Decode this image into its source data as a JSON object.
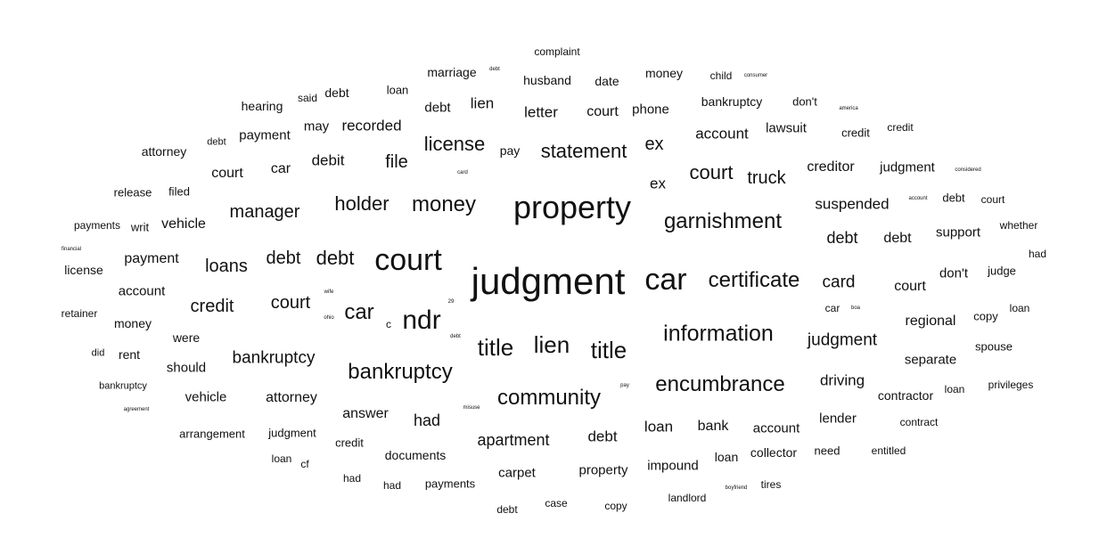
{
  "cloud": {
    "text_color": "#111111",
    "words": [
      {
        "text": "complaint",
        "weight": 12
      },
      {
        "text": "marriage",
        "weight": 14
      },
      {
        "text": "debt",
        "weight": 6
      },
      {
        "text": "husband",
        "weight": 14
      },
      {
        "text": "date",
        "weight": 14
      },
      {
        "text": "money",
        "weight": 14
      },
      {
        "text": "child",
        "weight": 12
      },
      {
        "text": "consumer",
        "weight": 6
      },
      {
        "text": "said",
        "weight": 12
      },
      {
        "text": "debt",
        "weight": 14
      },
      {
        "text": "loan",
        "weight": 13
      },
      {
        "text": "hearing",
        "weight": 14
      },
      {
        "text": "debt",
        "weight": 15
      },
      {
        "text": "lien",
        "weight": 17
      },
      {
        "text": "letter",
        "weight": 17
      },
      {
        "text": "court",
        "weight": 16
      },
      {
        "text": "phone",
        "weight": 15
      },
      {
        "text": "bankruptcy",
        "weight": 14
      },
      {
        "text": "don't",
        "weight": 13
      },
      {
        "text": "america",
        "weight": 6
      },
      {
        "text": "debt",
        "weight": 11
      },
      {
        "text": "payment",
        "weight": 15
      },
      {
        "text": "may",
        "weight": 15
      },
      {
        "text": "recorded",
        "weight": 17
      },
      {
        "text": "account",
        "weight": 17
      },
      {
        "text": "lawsuit",
        "weight": 15
      },
      {
        "text": "credit",
        "weight": 13
      },
      {
        "text": "credit",
        "weight": 12
      },
      {
        "text": "attorney",
        "weight": 14
      },
      {
        "text": "license",
        "weight": 22
      },
      {
        "text": "pay",
        "weight": 14
      },
      {
        "text": "statement",
        "weight": 22
      },
      {
        "text": "ex",
        "weight": 20
      },
      {
        "text": "debit",
        "weight": 17
      },
      {
        "text": "file",
        "weight": 20
      },
      {
        "text": "court",
        "weight": 16
      },
      {
        "text": "car",
        "weight": 16
      },
      {
        "text": "card",
        "weight": 6
      },
      {
        "text": "court",
        "weight": 22
      },
      {
        "text": "truck",
        "weight": 20
      },
      {
        "text": "creditor",
        "weight": 16
      },
      {
        "text": "judgment",
        "weight": 15
      },
      {
        "text": "considered",
        "weight": 6
      },
      {
        "text": "release",
        "weight": 13
      },
      {
        "text": "filed",
        "weight": 13
      },
      {
        "text": "ex",
        "weight": 17
      },
      {
        "text": "holder",
        "weight": 22
      },
      {
        "text": "money",
        "weight": 24
      },
      {
        "text": "property",
        "weight": 36
      },
      {
        "text": "suspended",
        "weight": 17
      },
      {
        "text": "account",
        "weight": 6
      },
      {
        "text": "debt",
        "weight": 13
      },
      {
        "text": "court",
        "weight": 12
      },
      {
        "text": "manager",
        "weight": 20
      },
      {
        "text": "garnishment",
        "weight": 24
      },
      {
        "text": "payments",
        "weight": 12
      },
      {
        "text": "writ",
        "weight": 13
      },
      {
        "text": "vehicle",
        "weight": 16
      },
      {
        "text": "whether",
        "weight": 12
      },
      {
        "text": "support",
        "weight": 15
      },
      {
        "text": "debt",
        "weight": 18
      },
      {
        "text": "debt",
        "weight": 16
      },
      {
        "text": "financial",
        "weight": 6
      },
      {
        "text": "had",
        "weight": 12
      },
      {
        "text": "payment",
        "weight": 16
      },
      {
        "text": "debt",
        "weight": 20
      },
      {
        "text": "debt",
        "weight": 22
      },
      {
        "text": "court",
        "weight": 34
      },
      {
        "text": "license",
        "weight": 14
      },
      {
        "text": "loans",
        "weight": 20
      },
      {
        "text": "judgment",
        "weight": 42
      },
      {
        "text": "car",
        "weight": 34
      },
      {
        "text": "certificate",
        "weight": 24
      },
      {
        "text": "don't",
        "weight": 15
      },
      {
        "text": "judge",
        "weight": 13
      },
      {
        "text": "card",
        "weight": 19
      },
      {
        "text": "account",
        "weight": 15
      },
      {
        "text": "wife",
        "weight": 6
      },
      {
        "text": "court",
        "weight": 16
      },
      {
        "text": "court",
        "weight": 20
      },
      {
        "text": "credit",
        "weight": 20
      },
      {
        "text": "29",
        "weight": 6
      },
      {
        "text": "car",
        "weight": 12
      },
      {
        "text": "boa",
        "weight": 6
      },
      {
        "text": "loan",
        "weight": 12
      },
      {
        "text": "copy",
        "weight": 13
      },
      {
        "text": "retainer",
        "weight": 12
      },
      {
        "text": "ohio",
        "weight": 6
      },
      {
        "text": "car",
        "weight": 24
      },
      {
        "text": "c",
        "weight": 12
      },
      {
        "text": "ndr",
        "weight": 30
      },
      {
        "text": "regional",
        "weight": 16
      },
      {
        "text": "money",
        "weight": 14
      },
      {
        "text": "information",
        "weight": 25
      },
      {
        "text": "debt",
        "weight": 6
      },
      {
        "text": "were",
        "weight": 14
      },
      {
        "text": "judgment",
        "weight": 19
      },
      {
        "text": "title",
        "weight": 26
      },
      {
        "text": "lien",
        "weight": 26
      },
      {
        "text": "title",
        "weight": 26
      },
      {
        "text": "spouse",
        "weight": 13
      },
      {
        "text": "did",
        "weight": 11
      },
      {
        "text": "rent",
        "weight": 14
      },
      {
        "text": "separate",
        "weight": 15
      },
      {
        "text": "bankruptcy",
        "weight": 19
      },
      {
        "text": "should",
        "weight": 15
      },
      {
        "text": "bankruptcy",
        "weight": 24
      },
      {
        "text": "bankruptcy",
        "weight": 11
      },
      {
        "text": "privileges",
        "weight": 12
      },
      {
        "text": "driving",
        "weight": 17
      },
      {
        "text": "encumbrance",
        "weight": 24
      },
      {
        "text": "loan",
        "weight": 12
      },
      {
        "text": "pay",
        "weight": 6
      },
      {
        "text": "contractor",
        "weight": 14
      },
      {
        "text": "vehicle",
        "weight": 15
      },
      {
        "text": "attorney",
        "weight": 16
      },
      {
        "text": "community",
        "weight": 24
      },
      {
        "text": "agreement",
        "weight": 6
      },
      {
        "text": "misuse",
        "weight": 6
      },
      {
        "text": "answer",
        "weight": 16
      },
      {
        "text": "had",
        "weight": 18
      },
      {
        "text": "lender",
        "weight": 15
      },
      {
        "text": "contract",
        "weight": 12
      },
      {
        "text": "loan",
        "weight": 17
      },
      {
        "text": "bank",
        "weight": 16
      },
      {
        "text": "account",
        "weight": 15
      },
      {
        "text": "arrangement",
        "weight": 13
      },
      {
        "text": "judgment",
        "weight": 13
      },
      {
        "text": "debt",
        "weight": 17
      },
      {
        "text": "apartment",
        "weight": 18
      },
      {
        "text": "credit",
        "weight": 13
      },
      {
        "text": "need",
        "weight": 13
      },
      {
        "text": "entitled",
        "weight": 12
      },
      {
        "text": "collector",
        "weight": 14
      },
      {
        "text": "documents",
        "weight": 14
      },
      {
        "text": "loan",
        "weight": 14
      },
      {
        "text": "cf",
        "weight": 12
      },
      {
        "text": "loan",
        "weight": 12
      },
      {
        "text": "impound",
        "weight": 15
      },
      {
        "text": "property",
        "weight": 15
      },
      {
        "text": "carpet",
        "weight": 15
      },
      {
        "text": "had",
        "weight": 12
      },
      {
        "text": "had",
        "weight": 12
      },
      {
        "text": "payments",
        "weight": 13
      },
      {
        "text": "boyfriend",
        "weight": 6
      },
      {
        "text": "tires",
        "weight": 12
      },
      {
        "text": "landlord",
        "weight": 12
      },
      {
        "text": "case",
        "weight": 12
      },
      {
        "text": "copy",
        "weight": 12
      },
      {
        "text": "debt",
        "weight": 12
      }
    ]
  }
}
